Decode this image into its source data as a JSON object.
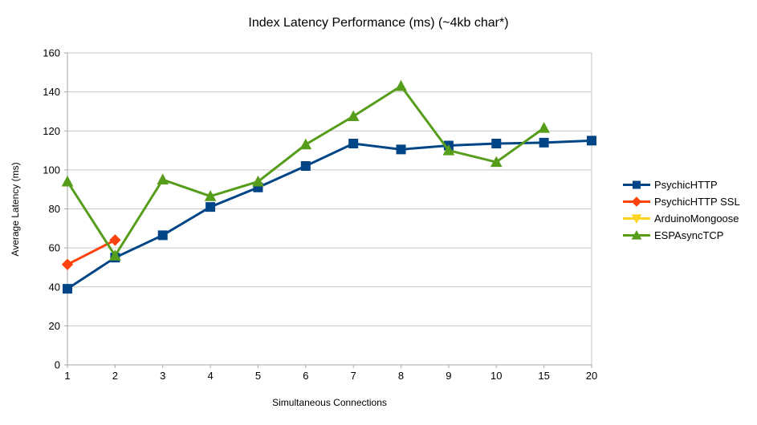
{
  "colors": {
    "background": "#ffffff",
    "gridline": "#c6c6c6",
    "axis": "#a6a6a6",
    "text": "#000000"
  },
  "chart_data": {
    "type": "line",
    "title": "Index Latency Performance (ms) (~4kb char*)",
    "xlabel": "Simultaneous Connections",
    "ylabel": "Average Latency (ms)",
    "categories": [
      "1",
      "2",
      "3",
      "4",
      "5",
      "6",
      "7",
      "8",
      "9",
      "10",
      "15",
      "20"
    ],
    "ylim": [
      0,
      160
    ],
    "y_ticks": [
      0,
      20,
      40,
      60,
      80,
      100,
      120,
      140,
      160
    ],
    "grid": true,
    "legend_position": "right",
    "series": [
      {
        "name": "PsychicHTTP",
        "color": "#004586",
        "marker": "square",
        "values": [
          39,
          55,
          66.5,
          81,
          91,
          102,
          113.5,
          110.5,
          112.5,
          113.5,
          114,
          115
        ]
      },
      {
        "name": "PsychicHTTP SSL",
        "color": "#FF420E",
        "marker": "diamond",
        "values": [
          51.5,
          64,
          null,
          null,
          null,
          null,
          null,
          null,
          null,
          null,
          null,
          null
        ]
      },
      {
        "name": "ArduinoMongoose",
        "color": "#FFD320",
        "marker": "triangle-down",
        "values": [
          null,
          null,
          null,
          null,
          null,
          null,
          null,
          null,
          null,
          null,
          null,
          null
        ]
      },
      {
        "name": "ESPAsyncTCP",
        "color": "#579D1C",
        "marker": "triangle-up",
        "values": [
          94,
          56,
          95,
          86.5,
          94,
          113,
          127.5,
          143,
          110,
          104,
          121.5,
          null
        ]
      }
    ]
  }
}
